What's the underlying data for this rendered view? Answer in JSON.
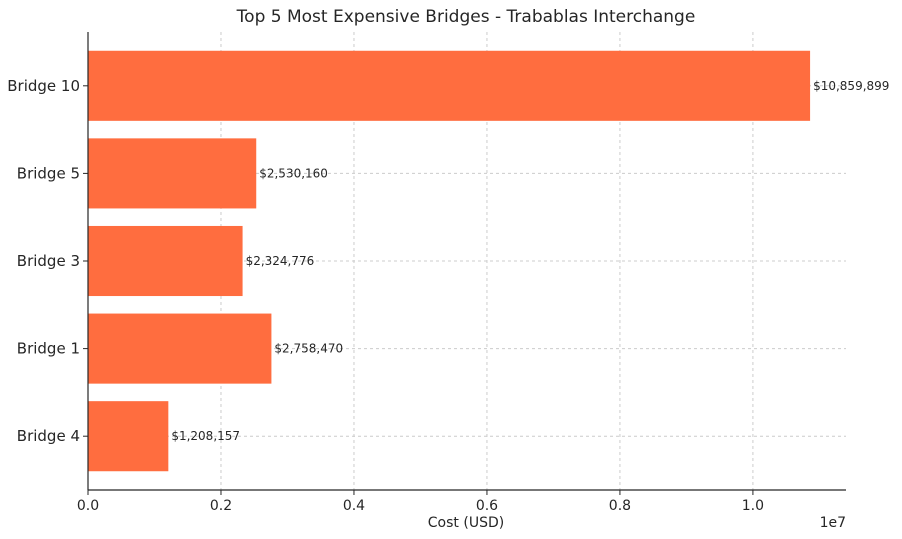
{
  "chart_data": {
    "type": "bar",
    "orientation": "horizontal",
    "title": "Top 5 Most Expensive Bridges - Trabablas Interchange",
    "xlabel": "Cost (USD)",
    "ylabel": "",
    "scale_label": "1e7",
    "categories": [
      "Bridge 10",
      "Bridge 5",
      "Bridge 3",
      "Bridge 1",
      "Bridge 4"
    ],
    "values": [
      10859899,
      2530160,
      2324776,
      2758470,
      1208157
    ],
    "data_labels": [
      "$10,859,899",
      "$2,530,160",
      "$2,324,776",
      "$2,758,470",
      "$1,208,157"
    ],
    "xlim": [
      0,
      11400000
    ],
    "xticks": [
      0,
      2000000,
      4000000,
      6000000,
      8000000,
      10000000
    ],
    "xtick_labels": [
      "0.0",
      "0.2",
      "0.4",
      "0.6",
      "0.8",
      "1.0"
    ],
    "grid": true,
    "bar_color": "#ff6d3f"
  }
}
